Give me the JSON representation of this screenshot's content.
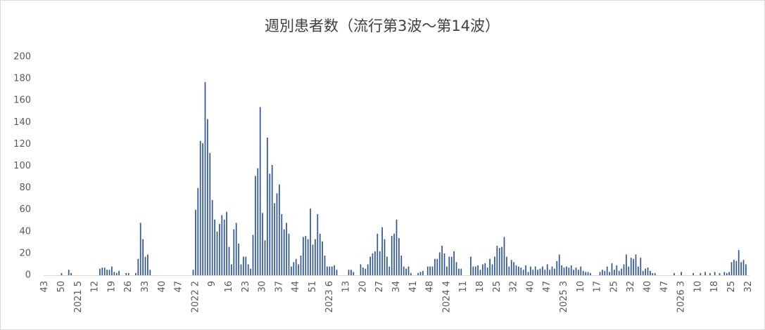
{
  "chart_data": {
    "type": "bar",
    "title": "週別患者数（流行第3波～第14波）",
    "categories": [
      "43",
      null,
      null,
      null,
      null,
      null,
      null,
      "50",
      null,
      null,
      null,
      null,
      null,
      null,
      "2021 5",
      null,
      null,
      null,
      null,
      null,
      null,
      "12",
      null,
      null,
      null,
      null,
      null,
      null,
      "19",
      null,
      null,
      null,
      null,
      null,
      null,
      "26",
      null,
      null,
      null,
      null,
      null,
      null,
      "33",
      null,
      null,
      null,
      null,
      null,
      null,
      "40",
      null,
      null,
      null,
      null,
      null,
      null,
      "47",
      null,
      null,
      null,
      null,
      null,
      null,
      "2022 2",
      null,
      null,
      null,
      null,
      null,
      null,
      "9",
      null,
      null,
      null,
      null,
      null,
      null,
      "16",
      null,
      null,
      null,
      null,
      null,
      null,
      "23",
      null,
      null,
      null,
      null,
      null,
      null,
      "30",
      null,
      null,
      null,
      null,
      null,
      null,
      "37",
      null,
      null,
      null,
      null,
      null,
      null,
      "44",
      null,
      null,
      null,
      null,
      null,
      null,
      "51",
      null,
      null,
      null,
      null,
      null,
      null,
      "2023 6",
      null,
      null,
      null,
      null,
      null,
      null,
      "13",
      null,
      null,
      null,
      null,
      null,
      null,
      "20",
      null,
      null,
      null,
      null,
      null,
      null,
      "27",
      null,
      null,
      null,
      null,
      null,
      null,
      "34",
      null,
      null,
      null,
      null,
      null,
      null,
      "41",
      null,
      null,
      null,
      null,
      null,
      null,
      "48",
      null,
      null,
      null,
      null,
      null,
      null,
      "2024 4",
      null,
      null,
      null,
      null,
      null,
      null,
      "11",
      null,
      null,
      null,
      null,
      null,
      null,
      "18",
      null,
      null,
      null,
      null,
      null,
      null,
      "25",
      null,
      null,
      null,
      null,
      null,
      null,
      "32",
      null,
      null,
      null,
      null,
      null,
      null,
      "40",
      null,
      null,
      null,
      null,
      null,
      null,
      "47",
      null,
      null,
      null,
      null,
      null,
      null,
      "2025 3",
      null,
      null,
      null,
      null,
      null,
      null,
      "10",
      null,
      null,
      null,
      null,
      null,
      null,
      "17",
      null,
      null,
      null,
      null,
      null,
      null,
      "25",
      null,
      null,
      null,
      null,
      null,
      null,
      "32",
      null,
      null,
      null,
      null,
      null,
      null,
      "40",
      null,
      null,
      null,
      null,
      null,
      null,
      "47",
      null,
      null,
      null,
      null,
      null,
      null,
      "2026 3",
      null,
      null,
      null,
      null,
      null,
      null,
      "10",
      null,
      null,
      null,
      null,
      null,
      null,
      "18",
      null,
      null,
      null,
      null,
      null,
      null,
      "25",
      null,
      null,
      null,
      null,
      null,
      null,
      "32"
    ],
    "values": [
      0,
      0,
      0,
      0,
      0,
      0,
      0,
      2,
      0,
      0,
      5,
      2,
      0,
      0,
      0,
      0,
      0,
      0,
      0,
      0,
      0,
      0,
      0,
      6,
      7,
      7,
      5,
      5,
      8,
      3,
      2,
      4,
      0,
      0,
      2,
      2,
      0,
      0,
      2,
      15,
      48,
      33,
      17,
      19,
      5,
      0,
      0,
      0,
      0,
      0,
      0,
      0,
      0,
      0,
      0,
      0,
      0,
      0,
      0,
      0,
      0,
      0,
      5,
      60,
      80,
      123,
      121,
      177,
      143,
      112,
      69,
      51,
      40,
      47,
      55,
      51,
      58,
      26,
      10,
      42,
      48,
      29,
      10,
      17,
      17,
      10,
      6,
      37,
      91,
      98,
      154,
      57,
      32,
      126,
      93,
      101,
      66,
      75,
      83,
      56,
      42,
      48,
      38,
      8,
      12,
      15,
      10,
      18,
      35,
      36,
      33,
      61,
      28,
      33,
      56,
      38,
      31,
      18,
      8,
      8,
      8,
      9,
      5,
      0,
      0,
      0,
      0,
      5,
      5,
      3,
      0,
      0,
      10,
      7,
      6,
      10,
      17,
      20,
      22,
      38,
      22,
      44,
      33,
      17,
      8,
      36,
      38,
      51,
      34,
      18,
      8,
      6,
      8,
      2,
      0,
      0,
      2,
      3,
      4,
      0,
      8,
      8,
      8,
      15,
      15,
      21,
      27,
      20,
      8,
      17,
      17,
      22,
      12,
      6,
      6,
      0,
      0,
      0,
      17,
      8,
      8,
      9,
      5,
      10,
      11,
      7,
      15,
      10,
      17,
      27,
      25,
      26,
      35,
      17,
      8,
      14,
      12,
      9,
      8,
      7,
      5,
      9,
      3,
      8,
      5,
      8,
      5,
      6,
      8,
      5,
      10,
      5,
      8,
      6,
      13,
      19,
      9,
      7,
      8,
      7,
      9,
      5,
      7,
      5,
      8,
      4,
      3,
      3,
      2,
      0,
      0,
      0,
      3,
      5,
      4,
      8,
      3,
      11,
      5,
      9,
      4,
      6,
      10,
      19,
      8,
      16,
      15,
      19,
      8,
      16,
      4,
      6,
      7,
      4,
      2,
      2,
      0,
      0,
      0,
      0,
      0,
      0,
      0,
      2,
      0,
      0,
      3,
      0,
      0,
      0,
      0,
      2,
      0,
      0,
      2,
      0,
      3,
      0,
      2,
      0,
      3,
      0,
      2,
      0,
      3,
      2,
      3,
      12,
      14,
      13,
      23,
      12,
      14,
      10,
      0
    ],
    "color": "#2e5597",
    "ylim": [
      0,
      200
    ],
    "yticks": [
      0,
      20,
      40,
      60,
      80,
      100,
      120,
      140,
      160,
      180,
      200
    ],
    "grid": false
  }
}
